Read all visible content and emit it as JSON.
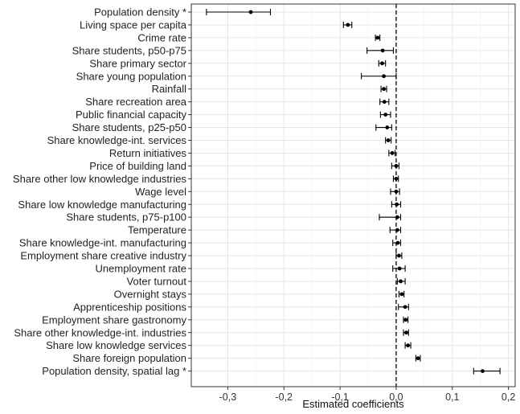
{
  "chart_data": {
    "type": "dot-and-whisker",
    "xlabel": "Estimated coefficients",
    "xlim": [
      -0.365,
      0.212
    ],
    "x_ticks": [
      -0.3,
      -0.2,
      -0.1,
      0.0,
      0.1,
      0.2
    ],
    "x_tick_labels": [
      "-0,3",
      "-0,2",
      "-0,1",
      "0,0",
      "0,1",
      "0,2"
    ],
    "reference_line": 0.0,
    "grid": true,
    "colors": {
      "point": "#000000",
      "grid": "#e5e5e5",
      "reference": "#000000"
    },
    "rows": [
      {
        "label": "Population density *",
        "estimate": -0.259,
        "lower": -0.338,
        "upper": -0.224
      },
      {
        "label": "Living space per capita",
        "estimate": -0.086,
        "lower": -0.094,
        "upper": -0.079
      },
      {
        "label": "Crime rate",
        "estimate": -0.033,
        "lower": -0.037,
        "upper": -0.029
      },
      {
        "label": "Share students, p50-p75",
        "estimate": -0.024,
        "lower": -0.052,
        "upper": -0.005
      },
      {
        "label": "Share primary sector",
        "estimate": -0.025,
        "lower": -0.031,
        "upper": -0.019
      },
      {
        "label": "Share young population",
        "estimate": -0.022,
        "lower": -0.062,
        "upper": 0.0
      },
      {
        "label": "Rainfall",
        "estimate": -0.022,
        "lower": -0.027,
        "upper": -0.017
      },
      {
        "label": "Share recreation area",
        "estimate": -0.021,
        "lower": -0.029,
        "upper": -0.013
      },
      {
        "label": "Public financial capacity",
        "estimate": -0.019,
        "lower": -0.028,
        "upper": -0.01
      },
      {
        "label": "Share students, p25-p50",
        "estimate": -0.016,
        "lower": -0.036,
        "upper": -0.008
      },
      {
        "label": "Share knowledge-int. services",
        "estimate": -0.014,
        "lower": -0.019,
        "upper": -0.009
      },
      {
        "label": "Return initiatives",
        "estimate": -0.007,
        "lower": -0.013,
        "upper": -0.002
      },
      {
        "label": "Price of building land",
        "estimate": 0.0,
        "lower": -0.008,
        "upper": 0.005
      },
      {
        "label": "Share other low knowledge industries",
        "estimate": 0.0,
        "lower": -0.005,
        "upper": 0.004
      },
      {
        "label": "Wage level",
        "estimate": 0.0,
        "lower": -0.01,
        "upper": 0.006
      },
      {
        "label": "Share low knowledge manufacturing",
        "estimate": 0.001,
        "lower": -0.008,
        "upper": 0.008
      },
      {
        "label": "Share students, p75-p100",
        "estimate": 0.002,
        "lower": -0.03,
        "upper": 0.008
      },
      {
        "label": "Temperature",
        "estimate": 0.002,
        "lower": -0.011,
        "upper": 0.008
      },
      {
        "label": "Share knowledge-int. manufacturing",
        "estimate": 0.003,
        "lower": -0.006,
        "upper": 0.008
      },
      {
        "label": "Employment share creative industry",
        "estimate": 0.005,
        "lower": 0.0,
        "upper": 0.01
      },
      {
        "label": "Unemployment rate",
        "estimate": 0.006,
        "lower": -0.006,
        "upper": 0.016
      },
      {
        "label": "Voter turnout",
        "estimate": 0.008,
        "lower": 0.002,
        "upper": 0.016
      },
      {
        "label": "Overnight stays",
        "estimate": 0.01,
        "lower": 0.005,
        "upper": 0.014
      },
      {
        "label": "Apprenticeship positions",
        "estimate": 0.016,
        "lower": 0.004,
        "upper": 0.022
      },
      {
        "label": "Employment share gastronomy",
        "estimate": 0.017,
        "lower": 0.013,
        "upper": 0.021
      },
      {
        "label": "Share other knowledge-int. industries",
        "estimate": 0.018,
        "lower": 0.013,
        "upper": 0.022
      },
      {
        "label": "Share low knowledge services",
        "estimate": 0.021,
        "lower": 0.016,
        "upper": 0.026
      },
      {
        "label": "Share foreign population",
        "estimate": 0.039,
        "lower": 0.035,
        "upper": 0.043
      },
      {
        "label": "Population density, spatial lag *",
        "estimate": 0.154,
        "lower": 0.138,
        "upper": 0.185
      }
    ]
  }
}
